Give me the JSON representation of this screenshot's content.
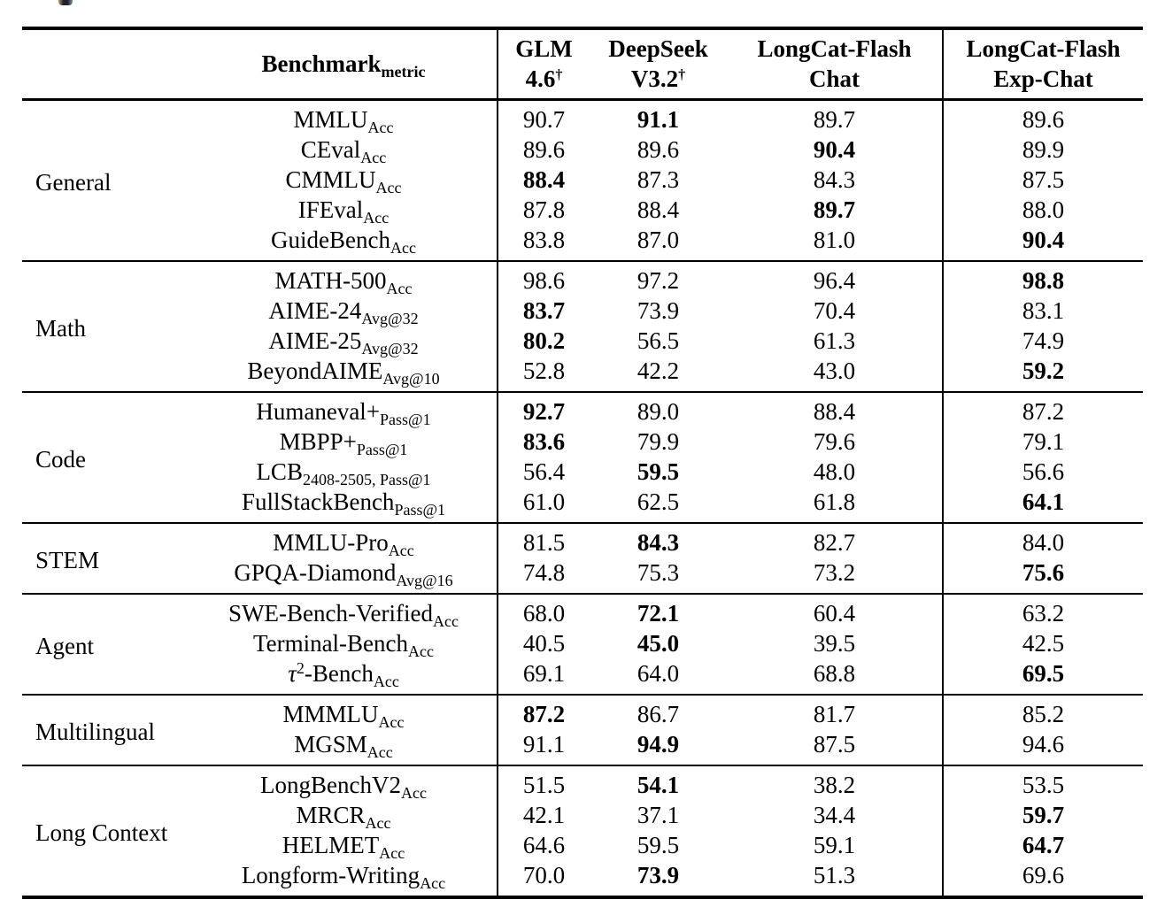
{
  "decoration": {
    "top_fragment": "cropped-colored-logo-fragment"
  },
  "table": {
    "header": {
      "benchmark_label": "Benchmark",
      "benchmark_subscript": "metric",
      "model_columns": [
        {
          "line1": "GLM",
          "line2": "4.6",
          "dagger": "†"
        },
        {
          "line1": "DeepSeek",
          "line2": "V3.2",
          "dagger": "†"
        },
        {
          "line1": "LongCat-Flash",
          "line2": "Chat",
          "dagger": ""
        },
        {
          "line1": "LongCat-Flash",
          "line2": "Exp-Chat",
          "dagger": ""
        }
      ]
    },
    "sections": [
      {
        "category": "General",
        "rows": [
          {
            "name": "MMLU",
            "sub": "Acc",
            "values": [
              "90.7",
              "91.1",
              "89.7",
              "89.6"
            ],
            "bold": [
              false,
              true,
              false,
              false
            ]
          },
          {
            "name": "CEval",
            "sub": "Acc",
            "values": [
              "89.6",
              "89.6",
              "90.4",
              "89.9"
            ],
            "bold": [
              false,
              false,
              true,
              false
            ]
          },
          {
            "name": "CMMLU",
            "sub": "Acc",
            "values": [
              "88.4",
              "87.3",
              "84.3",
              "87.5"
            ],
            "bold": [
              true,
              false,
              false,
              false
            ]
          },
          {
            "name": "IFEval",
            "sub": "Acc",
            "values": [
              "87.8",
              "88.4",
              "89.7",
              "88.0"
            ],
            "bold": [
              false,
              false,
              true,
              false
            ]
          },
          {
            "name": "GuideBench",
            "sub": "Acc",
            "values": [
              "83.8",
              "87.0",
              "81.0",
              "90.4"
            ],
            "bold": [
              false,
              false,
              false,
              true
            ]
          }
        ]
      },
      {
        "category": "Math",
        "rows": [
          {
            "name": "MATH-500",
            "sub": "Acc",
            "values": [
              "98.6",
              "97.2",
              "96.4",
              "98.8"
            ],
            "bold": [
              false,
              false,
              false,
              true
            ]
          },
          {
            "name": "AIME-24",
            "sub": "Avg@32",
            "values": [
              "83.7",
              "73.9",
              "70.4",
              "83.1"
            ],
            "bold": [
              true,
              false,
              false,
              false
            ]
          },
          {
            "name": "AIME-25",
            "sub": "Avg@32",
            "values": [
              "80.2",
              "56.5",
              "61.3",
              "74.9"
            ],
            "bold": [
              true,
              false,
              false,
              false
            ]
          },
          {
            "name": "BeyondAIME",
            "sub": "Avg@10",
            "values": [
              "52.8",
              "42.2",
              "43.0",
              "59.2"
            ],
            "bold": [
              false,
              false,
              false,
              true
            ]
          }
        ]
      },
      {
        "category": "Code",
        "rows": [
          {
            "name": "Humaneval+",
            "sub": "Pass@1",
            "values": [
              "92.7",
              "89.0",
              "88.4",
              "87.2"
            ],
            "bold": [
              true,
              false,
              false,
              false
            ]
          },
          {
            "name": "MBPP+",
            "sub": "Pass@1",
            "values": [
              "83.6",
              "79.9",
              "79.6",
              "79.1"
            ],
            "bold": [
              true,
              false,
              false,
              false
            ]
          },
          {
            "name": "LCB",
            "sub": "2408-2505, Pass@1",
            "values": [
              "56.4",
              "59.5",
              "48.0",
              "56.6"
            ],
            "bold": [
              false,
              true,
              false,
              false
            ]
          },
          {
            "name": "FullStackBench",
            "sub": "Pass@1",
            "values": [
              "61.0",
              "62.5",
              "61.8",
              "64.1"
            ],
            "bold": [
              false,
              false,
              false,
              true
            ]
          }
        ]
      },
      {
        "category": "STEM",
        "rows": [
          {
            "name": "MMLU-Pro",
            "sub": "Acc",
            "values": [
              "81.5",
              "84.3",
              "82.7",
              "84.0"
            ],
            "bold": [
              false,
              true,
              false,
              false
            ]
          },
          {
            "name": "GPQA-Diamond",
            "sub": "Avg@16",
            "values": [
              "74.8",
              "75.3",
              "73.2",
              "75.6"
            ],
            "bold": [
              false,
              false,
              false,
              true
            ]
          }
        ]
      },
      {
        "category": "Agent",
        "rows": [
          {
            "name": "SWE-Bench-Verified",
            "sub": "Acc",
            "values": [
              "68.0",
              "72.1",
              "60.4",
              "63.2"
            ],
            "bold": [
              false,
              true,
              false,
              false
            ]
          },
          {
            "name": "Terminal-Bench",
            "sub": "Acc",
            "values": [
              "40.5",
              "45.0",
              "39.5",
              "42.5"
            ],
            "bold": [
              false,
              true,
              false,
              false
            ]
          },
          {
            "name_italic": "τ",
            "name_sup": "2",
            "name": "-Bench",
            "sub": "Acc",
            "values": [
              "69.1",
              "64.0",
              "68.8",
              "69.5"
            ],
            "bold": [
              false,
              false,
              false,
              true
            ]
          }
        ]
      },
      {
        "category": "Multilingual",
        "rows": [
          {
            "name": "MMMLU",
            "sub": "Acc",
            "values": [
              "87.2",
              "86.7",
              "81.7",
              "85.2"
            ],
            "bold": [
              true,
              false,
              false,
              false
            ]
          },
          {
            "name": "MGSM",
            "sub": "Acc",
            "values": [
              "91.1",
              "94.9",
              "87.5",
              "94.6"
            ],
            "bold": [
              false,
              true,
              false,
              false
            ]
          }
        ]
      },
      {
        "category": "Long Context",
        "rows": [
          {
            "name": "LongBenchV2",
            "sub": "Acc",
            "values": [
              "51.5",
              "54.1",
              "38.2",
              "53.5"
            ],
            "bold": [
              false,
              true,
              false,
              false
            ]
          },
          {
            "name": "MRCR",
            "sub": "Acc",
            "values": [
              "42.1",
              "37.1",
              "34.4",
              "59.7"
            ],
            "bold": [
              false,
              false,
              false,
              true
            ]
          },
          {
            "name": "HELMET",
            "sub": "Acc",
            "values": [
              "64.6",
              "59.5",
              "59.1",
              "64.7"
            ],
            "bold": [
              false,
              false,
              false,
              true
            ]
          },
          {
            "name": "Longform-Writing",
            "sub": "Acc",
            "values": [
              "70.0",
              "73.9",
              "51.3",
              "69.6"
            ],
            "bold": [
              false,
              true,
              false,
              false
            ]
          }
        ]
      }
    ]
  }
}
